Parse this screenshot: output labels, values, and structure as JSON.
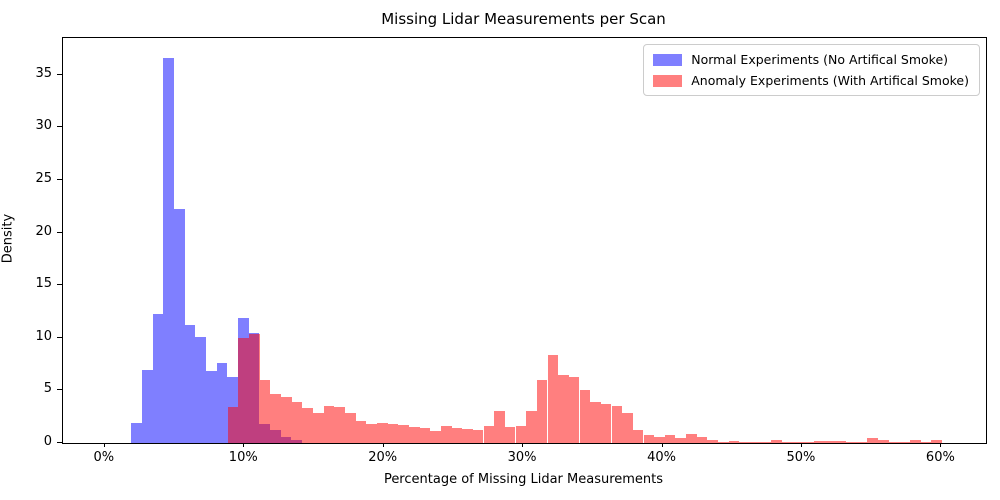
{
  "chart_data": {
    "type": "bar",
    "subtype": "overlaid-histogram",
    "title": "Missing Lidar Measurements per Scan",
    "xlabel": "Percentage of Missing Lidar Measurements",
    "ylabel": "Density",
    "xlim": [
      -3.0,
      63.2
    ],
    "ylim": [
      0,
      38.5
    ],
    "grid": false,
    "legend_position": "upper right",
    "x_ticks": [
      {
        "value": 0,
        "label": "0%"
      },
      {
        "value": 10,
        "label": "10%"
      },
      {
        "value": 20,
        "label": "20%"
      },
      {
        "value": 30,
        "label": "30%"
      },
      {
        "value": 40,
        "label": "40%"
      },
      {
        "value": 50,
        "label": "50%"
      },
      {
        "value": 60,
        "label": "60%"
      }
    ],
    "y_ticks": [
      0,
      5,
      10,
      15,
      20,
      25,
      30,
      35
    ],
    "bin_width_pct": 0.765,
    "series": [
      {
        "name": "Normal Experiments (No Artifical Smoke)",
        "color": "rgba(0,0,255,0.5)",
        "legend_color_hex": "#8080ff",
        "bin_start_pct": 1.9,
        "densities": [
          1.9,
          6.9,
          12.3,
          36.6,
          22.2,
          11.2,
          10.1,
          6.8,
          7.6,
          6.3,
          11.9,
          10.5,
          1.8,
          1.2,
          0.6,
          0.3
        ]
      },
      {
        "name": "Anomaly Experiments (With Artifical Smoke)",
        "color": "rgba(255,0,0,0.5)",
        "legend_color_hex": "#ff8080",
        "bin_start_pct": 8.8,
        "densities": [
          3.4,
          10.0,
          10.4,
          6.0,
          4.7,
          4.4,
          3.9,
          3.3,
          2.9,
          3.5,
          3.4,
          2.9,
          2.1,
          1.8,
          1.9,
          1.85,
          1.75,
          1.5,
          1.4,
          1.1,
          1.6,
          1.4,
          1.3,
          1.2,
          1.6,
          3.0,
          1.5,
          1.65,
          3.0,
          6.0,
          8.4,
          6.5,
          6.3,
          5.0,
          3.9,
          3.7,
          3.5,
          2.9,
          1.2,
          0.8,
          0.55,
          0.75,
          0.5,
          0.85,
          0.6,
          0.3,
          0.1,
          0.15,
          0.05,
          0.05,
          0.1,
          0.25,
          0.1,
          0.05,
          0.05,
          0.15,
          0.2,
          0.15,
          0.1,
          0.1,
          0.45,
          0.3,
          0.1,
          0.1,
          0.25,
          0.1,
          0.3
        ]
      }
    ]
  }
}
